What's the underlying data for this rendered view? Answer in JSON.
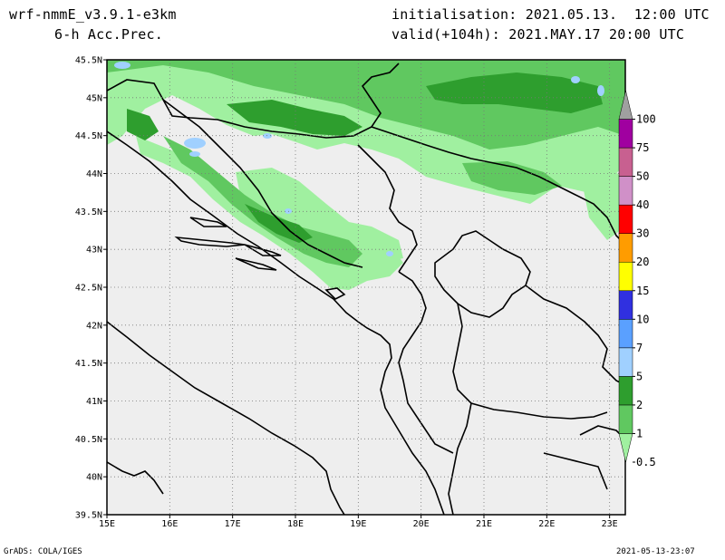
{
  "header": {
    "model": "wrf-nmmE_v3.9.1-e3km",
    "field": "6-h Acc.Prec.",
    "initialisation": "initialisation: 2021.05.13.  12:00 UTC",
    "valid": "valid(+104h): 2021.MAY.17 20:00 UTC"
  },
  "footer": {
    "left": "GrADS: COLA/IGES",
    "right": "2021-05-13-23:07"
  },
  "map": {
    "lat_labels": [
      "45.5N",
      "45N",
      "44.5N",
      "44N",
      "43.5N",
      "43N",
      "42.5N",
      "42N",
      "41.5N",
      "41N",
      "40.5N",
      "40N",
      "39.5N"
    ],
    "lon_labels": [
      "15E",
      "16E",
      "17E",
      "18E",
      "19E",
      "20E",
      "21E",
      "22E",
      "23E"
    ],
    "lat_range": [
      39.5,
      45.5
    ],
    "lon_range": [
      15,
      23.25
    ],
    "background_color": "#eeeeee"
  },
  "colorbar": {
    "levels": [
      "0.5",
      "1",
      "2",
      "5",
      "7",
      "10",
      "15",
      "20",
      "30",
      "40",
      "50",
      "75",
      "100"
    ],
    "colors": [
      "#a0f0a0",
      "#60c860",
      "#2e9e2e",
      "#a0d0ff",
      "#5aa0ff",
      "#3030e0",
      "#ffff00",
      "#ff9c00",
      "#ff0000",
      "#d090c8",
      "#c86090",
      "#a000a0",
      "#a0a0a0"
    ]
  }
}
